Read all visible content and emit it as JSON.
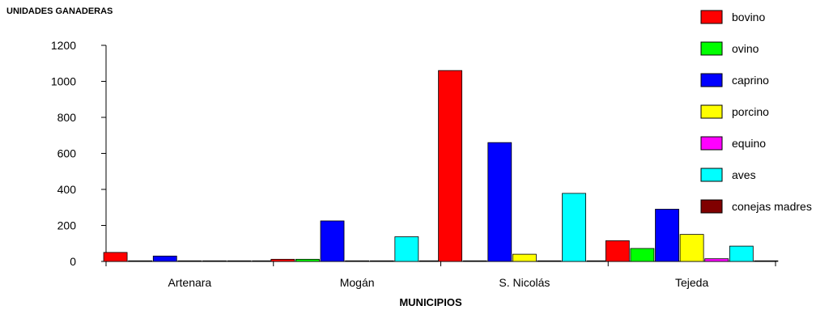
{
  "chart_data": {
    "type": "bar",
    "title": "",
    "ylabel": "UNIDADES GANADERAS",
    "xlabel": "MUNICIPIOS",
    "ylim": [
      0,
      1200
    ],
    "yticks": [
      0,
      200,
      400,
      600,
      800,
      1000,
      1200
    ],
    "grid": false,
    "legend_position": "right",
    "categories": [
      "Artenara",
      "Mogán",
      "S. Nicolás",
      "Tejeda"
    ],
    "series": [
      {
        "name": "bovino",
        "color": "#ff0000",
        "values": [
          50,
          12,
          1060,
          115
        ]
      },
      {
        "name": "ovino",
        "color": "#00ff00",
        "values": [
          2,
          12,
          3,
          72
        ]
      },
      {
        "name": "caprino",
        "color": "#0000ff",
        "values": [
          30,
          225,
          660,
          290
        ]
      },
      {
        "name": "porcino",
        "color": "#ffff00",
        "values": [
          0,
          3,
          40,
          150
        ]
      },
      {
        "name": "equino",
        "color": "#ff00ff",
        "values": [
          0,
          0,
          0,
          15
        ]
      },
      {
        "name": "aves",
        "color": "#00ffff",
        "values": [
          0,
          137,
          378,
          85
        ]
      },
      {
        "name": "conejas madres",
        "color": "#800000",
        "values": [
          1,
          0,
          0,
          0
        ]
      }
    ]
  }
}
